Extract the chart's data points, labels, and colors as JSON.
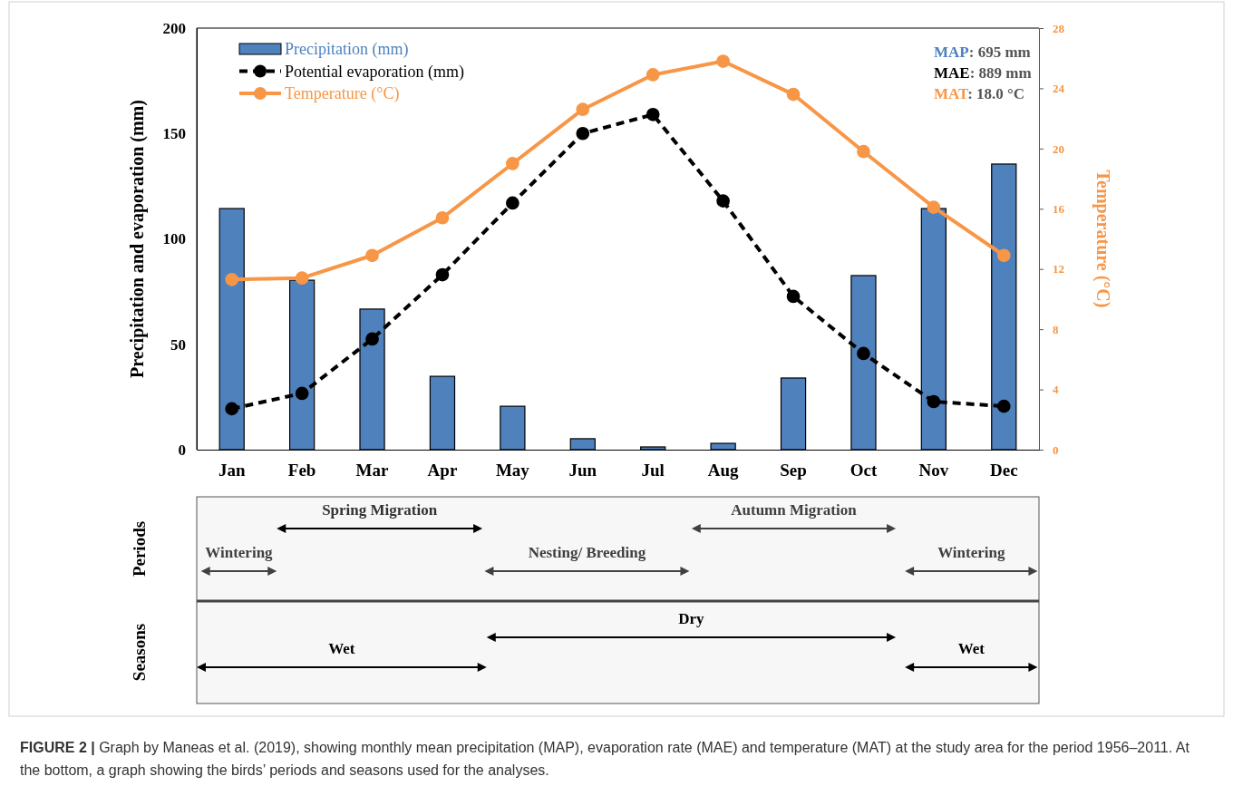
{
  "chart_data": [
    {
      "type": "bar",
      "categories": [
        "Jan",
        "Feb",
        "Mar",
        "Apr",
        "May",
        "Jun",
        "Jul",
        "Aug",
        "Sep",
        "Oct",
        "Nov",
        "Dec"
      ],
      "series": [
        {
          "name": "Precipitation (mm)",
          "type": "bar",
          "color": "#4f81bd",
          "values": [
            114.4,
            80.4,
            66.7,
            34.8,
            20.6,
            5.2,
            1.3,
            3.0,
            34.0,
            82.6,
            114.4,
            135.5
          ]
        },
        {
          "name": "Potential evaporation (mm)",
          "type": "line",
          "color": "#000000",
          "line_style": "dashed",
          "marker": "circle",
          "values": [
            19.4,
            26.7,
            52.5,
            83,
            117,
            150,
            159,
            118,
            72.7,
            45.6,
            22.8,
            20.6
          ]
        },
        {
          "name": "Temperature (°C)",
          "type": "line",
          "axis": "y2",
          "color": "#f79646",
          "line_style": "solid",
          "marker": "circle",
          "values": [
            11.3,
            11.4,
            12.9,
            15.4,
            19.0,
            22.6,
            24.9,
            25.8,
            23.6,
            19.8,
            16.1,
            12.9
          ]
        }
      ],
      "ylabel": "Precipitation and evaporation (mm)",
      "y2label": "Temperature (°C)",
      "ylim": [
        0,
        200
      ],
      "yticks": [
        0,
        50,
        100,
        150,
        200
      ],
      "y2lim": [
        0,
        28
      ],
      "y2ticks": [
        0,
        4,
        8,
        12,
        16,
        20,
        24,
        28
      ],
      "legend": "top left",
      "annotations": [
        "MAP: 695 mm",
        "MAE: 889 mm",
        "MAT: 18.0 °C",
        "FIGURE 2 | Graph by Maneas et al. (2019), showing monthly mean precipitation (MAP), evaporation rate (MAE) and temperature (MAT) at the study area for the period 1956–2011. At the bottom, a graph showing the birds’ periods and seasons used for the analyses."
      ]
    },
    {
      "type": "other",
      "y_categories": [
        "Periods",
        "Seasons"
      ],
      "annotations": [
        "Wintering",
        "Spring Migration",
        "Nesting/ Breeding",
        "Autumn Migration",
        "Wintering",
        "Wet",
        "Dry",
        "Wet"
      ]
    }
  ]
}
